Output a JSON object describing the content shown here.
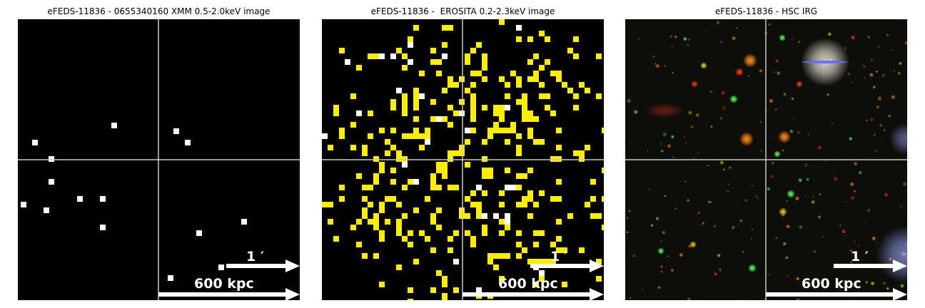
{
  "panels": [
    {
      "title": "eFEDS-11836 - 0655340160 XMM 0.5-2.0keV image",
      "arcmin_label": "1 ′",
      "kpc_label": "600 kpc",
      "kind": "xmm"
    },
    {
      "title": "eFEDS-11836 -  EROSITA 0.2-2.3keV image",
      "arcmin_label": "1 ′",
      "kpc_label": "600 kpc",
      "kind": "erosita"
    },
    {
      "title": "eFEDS-11836 - HSC IRG",
      "arcmin_label": "1 ′",
      "kpc_label": "600 kpc",
      "kind": "hsc"
    }
  ],
  "colors": {
    "background": "#000000",
    "crosshair": "#c8c8c8",
    "counts_low": "#ffee00",
    "counts_high": "#ffffff",
    "annotation": "#ffffff"
  }
}
